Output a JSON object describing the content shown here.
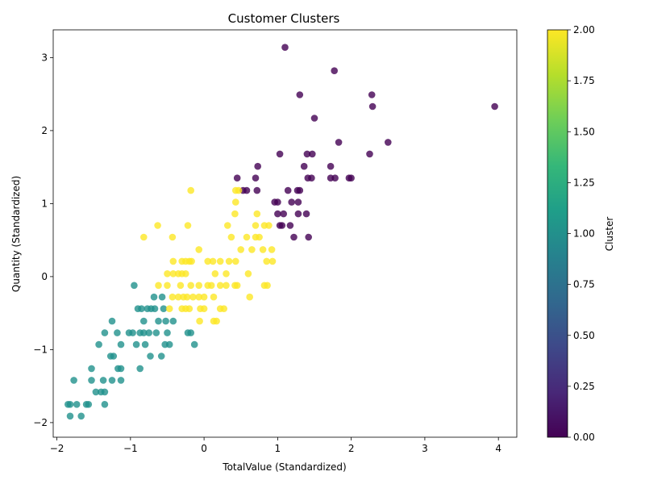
{
  "chart_data": {
    "type": "scatter",
    "title": "Customer Clusters",
    "xlabel": "TotalValue (Standardized)",
    "ylabel": "Quantity (Standardized)",
    "xlim": [
      -2.05,
      4.25
    ],
    "ylim": [
      -2.2,
      3.38
    ],
    "x_ticks": [
      -2,
      -1,
      0,
      1,
      2,
      3,
      4
    ],
    "y_ticks": [
      -2,
      -1,
      0,
      1,
      2,
      3
    ],
    "grid": false,
    "legend": "none",
    "colorbar": {
      "label": "Cluster",
      "range": [
        0,
        2
      ],
      "ticks": [
        "0.00",
        "0.25",
        "0.50",
        "0.75",
        "1.00",
        "1.25",
        "1.50",
        "1.75",
        "2.00"
      ],
      "colormap": "viridis",
      "stops": [
        "#440154",
        "#482878",
        "#3e4989",
        "#31688e",
        "#26828e",
        "#1f9e89",
        "#35b779",
        "#6ece58",
        "#b5de2b",
        "#fde725"
      ]
    },
    "marker_alpha": 0.8,
    "clusters": [
      {
        "cluster": 0,
        "color": "#440154",
        "points": [
          [
            1.1,
            3.14
          ],
          [
            1.77,
            2.82
          ],
          [
            1.3,
            2.49
          ],
          [
            2.28,
            2.49
          ],
          [
            2.29,
            2.33
          ],
          [
            3.95,
            2.33
          ],
          [
            1.5,
            2.17
          ],
          [
            1.83,
            1.84
          ],
          [
            2.5,
            1.84
          ],
          [
            1.03,
            1.68
          ],
          [
            1.4,
            1.68
          ],
          [
            1.47,
            1.68
          ],
          [
            2.25,
            1.68
          ],
          [
            0.73,
            1.51
          ],
          [
            1.36,
            1.51
          ],
          [
            1.72,
            1.51
          ],
          [
            0.45,
            1.35
          ],
          [
            0.7,
            1.35
          ],
          [
            1.41,
            1.35
          ],
          [
            1.46,
            1.35
          ],
          [
            1.72,
            1.35
          ],
          [
            1.78,
            1.35
          ],
          [
            1.97,
            1.35
          ],
          [
            2.0,
            1.35
          ],
          [
            0.53,
            1.18
          ],
          [
            0.58,
            1.18
          ],
          [
            0.72,
            1.18
          ],
          [
            1.14,
            1.18
          ],
          [
            1.27,
            1.18
          ],
          [
            1.3,
            1.18
          ],
          [
            0.96,
            1.02
          ],
          [
            1.0,
            1.02
          ],
          [
            1.19,
            1.02
          ],
          [
            1.28,
            1.02
          ],
          [
            1.0,
            0.86
          ],
          [
            1.08,
            0.86
          ],
          [
            1.28,
            0.86
          ],
          [
            1.39,
            0.86
          ],
          [
            1.03,
            0.7
          ],
          [
            1.06,
            0.7
          ],
          [
            1.17,
            0.7
          ],
          [
            1.22,
            0.54
          ],
          [
            1.42,
            0.54
          ]
        ]
      },
      {
        "cluster": 1,
        "color": "#21918c",
        "points": [
          [
            -0.95,
            -0.12
          ],
          [
            -0.68,
            -0.28
          ],
          [
            -0.57,
            -0.28
          ],
          [
            -0.9,
            -0.44
          ],
          [
            -0.85,
            -0.44
          ],
          [
            -0.77,
            -0.44
          ],
          [
            -0.72,
            -0.44
          ],
          [
            -0.67,
            -0.44
          ],
          [
            -0.55,
            -0.44
          ],
          [
            -1.25,
            -0.61
          ],
          [
            -0.82,
            -0.61
          ],
          [
            -0.62,
            -0.61
          ],
          [
            -0.52,
            -0.61
          ],
          [
            -0.42,
            -0.61
          ],
          [
            -1.35,
            -0.77
          ],
          [
            -1.18,
            -0.77
          ],
          [
            -1.02,
            -0.77
          ],
          [
            -0.97,
            -0.77
          ],
          [
            -0.87,
            -0.77
          ],
          [
            -0.82,
            -0.77
          ],
          [
            -0.75,
            -0.77
          ],
          [
            -0.65,
            -0.77
          ],
          [
            -0.5,
            -0.77
          ],
          [
            -0.22,
            -0.77
          ],
          [
            -0.18,
            -0.77
          ],
          [
            -1.43,
            -0.93
          ],
          [
            -1.13,
            -0.93
          ],
          [
            -0.92,
            -0.93
          ],
          [
            -0.8,
            -0.93
          ],
          [
            -0.53,
            -0.93
          ],
          [
            -0.47,
            -0.93
          ],
          [
            -0.13,
            -0.93
          ],
          [
            -1.27,
            -1.09
          ],
          [
            -1.23,
            -1.09
          ],
          [
            -0.73,
            -1.09
          ],
          [
            -0.58,
            -1.09
          ],
          [
            -1.53,
            -1.26
          ],
          [
            -1.17,
            -1.26
          ],
          [
            -1.13,
            -1.26
          ],
          [
            -0.87,
            -1.26
          ],
          [
            -1.77,
            -1.42
          ],
          [
            -1.53,
            -1.42
          ],
          [
            -1.37,
            -1.42
          ],
          [
            -1.25,
            -1.42
          ],
          [
            -1.13,
            -1.42
          ],
          [
            -1.47,
            -1.58
          ],
          [
            -1.4,
            -1.58
          ],
          [
            -1.35,
            -1.58
          ],
          [
            -1.85,
            -1.75
          ],
          [
            -1.82,
            -1.75
          ],
          [
            -1.73,
            -1.75
          ],
          [
            -1.6,
            -1.75
          ],
          [
            -1.57,
            -1.75
          ],
          [
            -1.35,
            -1.75
          ],
          [
            -1.82,
            -1.91
          ],
          [
            -1.67,
            -1.91
          ]
        ]
      },
      {
        "cluster": 2,
        "color": "#fde725",
        "points": [
          [
            -0.18,
            1.18
          ],
          [
            0.43,
            1.18
          ],
          [
            0.47,
            1.18
          ],
          [
            0.43,
            1.02
          ],
          [
            0.42,
            0.86
          ],
          [
            0.72,
            0.86
          ],
          [
            -0.63,
            0.7
          ],
          [
            -0.22,
            0.7
          ],
          [
            0.32,
            0.7
          ],
          [
            0.7,
            0.7
          ],
          [
            0.82,
            0.7
          ],
          [
            0.88,
            0.7
          ],
          [
            -0.82,
            0.54
          ],
          [
            -0.43,
            0.54
          ],
          [
            0.37,
            0.54
          ],
          [
            0.58,
            0.54
          ],
          [
            0.7,
            0.54
          ],
          [
            0.75,
            0.54
          ],
          [
            -0.07,
            0.37
          ],
          [
            0.5,
            0.37
          ],
          [
            0.65,
            0.37
          ],
          [
            0.8,
            0.37
          ],
          [
            0.92,
            0.37
          ],
          [
            -0.42,
            0.21
          ],
          [
            -0.3,
            0.21
          ],
          [
            -0.25,
            0.21
          ],
          [
            -0.2,
            0.21
          ],
          [
            -0.17,
            0.21
          ],
          [
            0.05,
            0.21
          ],
          [
            0.12,
            0.21
          ],
          [
            0.22,
            0.21
          ],
          [
            0.34,
            0.21
          ],
          [
            0.43,
            0.21
          ],
          [
            0.85,
            0.21
          ],
          [
            0.93,
            0.21
          ],
          [
            -0.5,
            0.04
          ],
          [
            -0.42,
            0.04
          ],
          [
            -0.35,
            0.04
          ],
          [
            -0.3,
            0.04
          ],
          [
            -0.25,
            0.04
          ],
          [
            0.15,
            0.04
          ],
          [
            0.3,
            0.04
          ],
          [
            0.6,
            0.04
          ],
          [
            -0.62,
            -0.12
          ],
          [
            -0.5,
            -0.12
          ],
          [
            -0.32,
            -0.12
          ],
          [
            -0.18,
            -0.12
          ],
          [
            -0.07,
            -0.12
          ],
          [
            0.05,
            -0.12
          ],
          [
            0.1,
            -0.12
          ],
          [
            0.22,
            -0.12
          ],
          [
            0.3,
            -0.12
          ],
          [
            0.42,
            -0.12
          ],
          [
            0.45,
            -0.12
          ],
          [
            0.82,
            -0.12
          ],
          [
            0.86,
            -0.12
          ],
          [
            -0.43,
            -0.28
          ],
          [
            -0.35,
            -0.28
          ],
          [
            -0.28,
            -0.28
          ],
          [
            -0.23,
            -0.28
          ],
          [
            -0.15,
            -0.28
          ],
          [
            -0.07,
            -0.28
          ],
          [
            0.0,
            -0.28
          ],
          [
            0.13,
            -0.28
          ],
          [
            0.62,
            -0.28
          ],
          [
            -0.47,
            -0.44
          ],
          [
            -0.3,
            -0.44
          ],
          [
            -0.25,
            -0.44
          ],
          [
            -0.2,
            -0.44
          ],
          [
            -0.05,
            -0.44
          ],
          [
            0.0,
            -0.44
          ],
          [
            0.22,
            -0.44
          ],
          [
            0.27,
            -0.44
          ],
          [
            -0.06,
            -0.61
          ],
          [
            0.13,
            -0.61
          ],
          [
            0.17,
            -0.61
          ]
        ]
      }
    ]
  }
}
